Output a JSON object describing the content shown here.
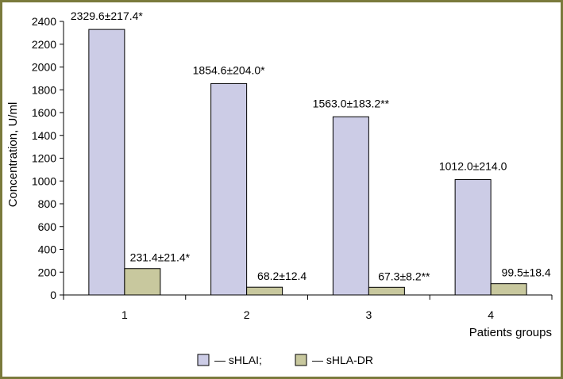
{
  "chart_data": {
    "type": "bar",
    "title": "",
    "xlabel": "Patients groups",
    "ylabel": "Concentration, U/ml",
    "categories": [
      "1",
      "2",
      "3",
      "4"
    ],
    "ylim": [
      0,
      2400
    ],
    "yticks": [
      0,
      200,
      400,
      600,
      800,
      1000,
      1200,
      1400,
      1600,
      1800,
      2000,
      2200,
      2400
    ],
    "grid": false,
    "legend_position": "bottom-center",
    "series": [
      {
        "name": "sHLAI;",
        "legend_label": "— sHLAI;",
        "color": "#cccce6",
        "values": [
          2329.6,
          1854.6,
          1563.0,
          1012.0
        ],
        "labels": [
          "2329.6±217.4*",
          "1854.6±204.0*",
          "1563.0±183.2**",
          "1012.0±214.0"
        ]
      },
      {
        "name": "sHLA-DR",
        "legend_label": "— sHLA-DR",
        "color": "#c8c89e",
        "values": [
          231.4,
          68.2,
          67.3,
          99.5
        ],
        "labels": [
          "231.4±21.4*",
          "68.2±12.4",
          "67.3±8.2**",
          "99.5±18.4"
        ]
      }
    ]
  }
}
